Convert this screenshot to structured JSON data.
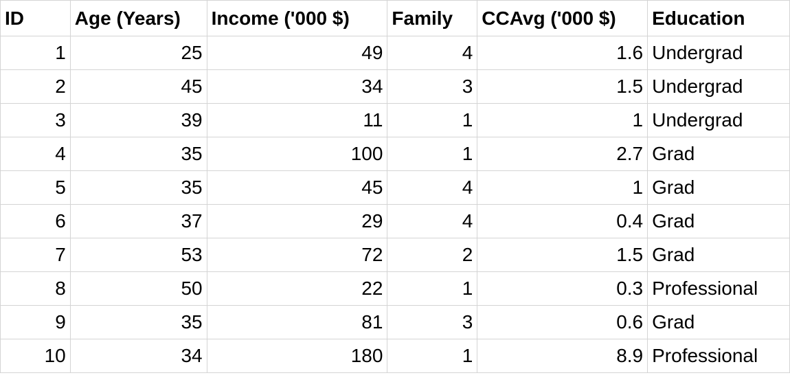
{
  "table": {
    "headers": [
      "ID",
      "Age (Years)",
      "Income ('000 $)",
      "Family",
      "CCAvg ('000 $)",
      "Education"
    ],
    "rows": [
      [
        "1",
        "25",
        "49",
        "4",
        "1.6",
        "Undergrad"
      ],
      [
        "2",
        "45",
        "34",
        "3",
        "1.5",
        "Undergrad"
      ],
      [
        "3",
        "39",
        "11",
        "1",
        "1",
        "Undergrad"
      ],
      [
        "4",
        "35",
        "100",
        "1",
        "2.7",
        "Grad"
      ],
      [
        "5",
        "35",
        "45",
        "4",
        "1",
        "Grad"
      ],
      [
        "6",
        "37",
        "29",
        "4",
        "0.4",
        "Grad"
      ],
      [
        "7",
        "53",
        "72",
        "2",
        "1.5",
        "Grad"
      ],
      [
        "8",
        "50",
        "22",
        "1",
        "0.3",
        "Professional"
      ],
      [
        "9",
        "35",
        "81",
        "3",
        "0.6",
        "Grad"
      ],
      [
        "10",
        "34",
        "180",
        "1",
        "8.9",
        "Professional"
      ]
    ],
    "gridline_color": "#d4d4d4"
  }
}
